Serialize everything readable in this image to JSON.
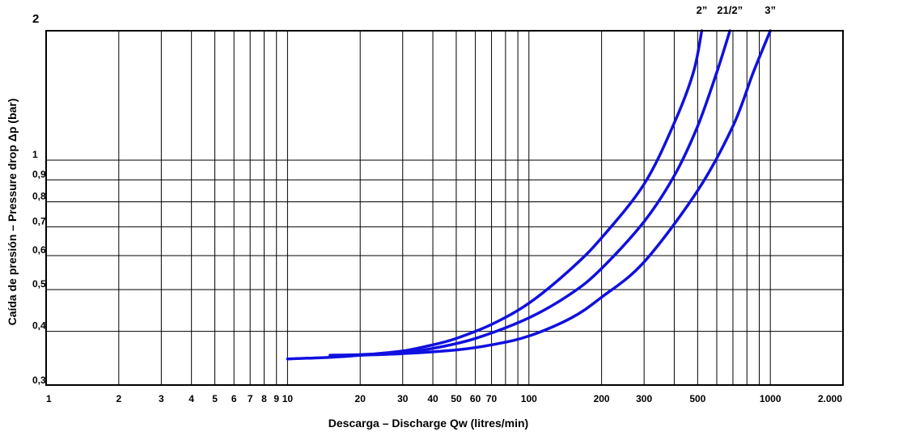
{
  "chart_data": {
    "type": "line",
    "title": "",
    "xlabel": "Descarga – Discharge  Qw (litres/min)",
    "ylabel": "Caída de presión – Pressure drop  Δp (bar)",
    "x_scale": "log",
    "y_scale": "log",
    "xlim": [
      1,
      2000
    ],
    "ylim": [
      0.3,
      2
    ],
    "grid": true,
    "line_color": "#1010e0",
    "x_ticks": [
      {
        "value": 1,
        "label": "1"
      },
      {
        "value": 2,
        "label": "2"
      },
      {
        "value": 3,
        "label": "3"
      },
      {
        "value": 4,
        "label": "4"
      },
      {
        "value": 5,
        "label": "5"
      },
      {
        "value": 6,
        "label": "6"
      },
      {
        "value": 7,
        "label": "7"
      },
      {
        "value": 8,
        "label": "8"
      },
      {
        "value": 9,
        "label": "9"
      },
      {
        "value": 10,
        "label": "10"
      },
      {
        "value": 20,
        "label": "20"
      },
      {
        "value": 30,
        "label": "30"
      },
      {
        "value": 40,
        "label": "40"
      },
      {
        "value": 50,
        "label": "50"
      },
      {
        "value": 60,
        "label": "60"
      },
      {
        "value": 70,
        "label": "70"
      },
      {
        "value": 100,
        "label": "100"
      },
      {
        "value": 200,
        "label": "200"
      },
      {
        "value": 300,
        "label": "300"
      },
      {
        "value": 500,
        "label": "500"
      },
      {
        "value": 1000,
        "label": "1000"
      },
      {
        "value": 2000,
        "label": "2.000"
      }
    ],
    "x_extra_gridlines": [
      80,
      90,
      400,
      600,
      700,
      800,
      900
    ],
    "y_ticks": [
      {
        "value": 2,
        "label": "2"
      },
      {
        "value": 1,
        "label": "1"
      },
      {
        "value": 0.9,
        "label": "0,9"
      },
      {
        "value": 0.8,
        "label": "0,8"
      },
      {
        "value": 0.7,
        "label": "0,7"
      },
      {
        "value": 0.6,
        "label": "0,6"
      },
      {
        "value": 0.5,
        "label": "0,5"
      },
      {
        "value": 0.4,
        "label": "0,4"
      },
      {
        "value": 0.3,
        "label": "0,3"
      }
    ],
    "series": [
      {
        "name": "2”",
        "points": [
          [
            10,
            0.345
          ],
          [
            15,
            0.348
          ],
          [
            20,
            0.352
          ],
          [
            30,
            0.36
          ],
          [
            40,
            0.372
          ],
          [
            50,
            0.385
          ],
          [
            70,
            0.415
          ],
          [
            100,
            0.465
          ],
          [
            150,
            0.56
          ],
          [
            200,
            0.66
          ],
          [
            300,
            0.88
          ],
          [
            400,
            1.22
          ],
          [
            480,
            1.6
          ],
          [
            520,
            2.0
          ]
        ]
      },
      {
        "name": "21/2”",
        "points": [
          [
            15,
            0.352
          ],
          [
            20,
            0.353
          ],
          [
            30,
            0.357
          ],
          [
            40,
            0.365
          ],
          [
            60,
            0.385
          ],
          [
            100,
            0.43
          ],
          [
            150,
            0.49
          ],
          [
            200,
            0.56
          ],
          [
            300,
            0.72
          ],
          [
            400,
            0.92
          ],
          [
            500,
            1.2
          ],
          [
            600,
            1.6
          ],
          [
            680,
            2.0
          ]
        ]
      },
      {
        "name": "3”",
        "points": [
          [
            20,
            0.352
          ],
          [
            30,
            0.355
          ],
          [
            50,
            0.362
          ],
          [
            70,
            0.372
          ],
          [
            100,
            0.39
          ],
          [
            150,
            0.43
          ],
          [
            200,
            0.48
          ],
          [
            300,
            0.58
          ],
          [
            500,
            0.85
          ],
          [
            700,
            1.2
          ],
          [
            850,
            1.6
          ],
          [
            1000,
            2.0
          ]
        ]
      }
    ]
  }
}
